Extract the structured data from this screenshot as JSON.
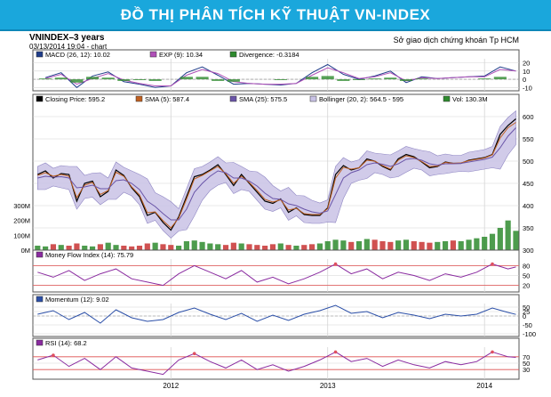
{
  "banner": {
    "title": "ĐỒ THỊ PHÂN TÍCH KỸ THUẬT VN-INDEX"
  },
  "header": {
    "symbol": "VNINDEX",
    "period": "3 years",
    "date_time": "03/13/2014 19:04",
    "chart_word": "chart",
    "source": "Sở giao dịch chứng khoán Tp HCM"
  },
  "colors": {
    "banner": "#1aa7dc",
    "price": "#000000",
    "sma5": "#c06020",
    "sma25": "#6a55a8",
    "bollinger_fill": "#c9c3e6",
    "bollinger_line": "#7a6fb8",
    "volume": "#2e8b2e",
    "volume_up": "#2e8b2e",
    "volume_down": "#c83232",
    "macd": "#1f3d8a",
    "exp": "#b050b8",
    "divergence": "#2e8b2e",
    "mfi": "#8a2ba0",
    "momentum": "#2b4fa8",
    "rsi": "#8a2ba0",
    "overbought_fill": "#e05060",
    "threshold_line": "#e05050",
    "panel_bg": "#ffffff",
    "grid": "#d4d4d4"
  },
  "chart_data": [
    {
      "panel": "macd",
      "type": "line",
      "legend": [
        {
          "label": "MACD (26, 12): 10.02",
          "icon": "square-icon"
        },
        {
          "label": "EXP (9): 10.34",
          "icon": "square-icon"
        },
        {
          "label": "Divergence: -0.3184",
          "icon": "square-icon"
        }
      ],
      "ylim": [
        -14,
        25
      ],
      "y_ticks": [
        "20",
        "10",
        "0",
        "-10"
      ],
      "x_ticks": [
        "2012",
        "2013",
        "2014"
      ],
      "x": [
        2011.2,
        2011.3,
        2011.4,
        2011.5,
        2011.6,
        2011.7,
        2011.8,
        2011.9,
        2012.0,
        2012.1,
        2012.2,
        2012.3,
        2012.4,
        2012.5,
        2012.6,
        2012.7,
        2012.8,
        2012.9,
        2013.0,
        2013.1,
        2013.2,
        2013.3,
        2013.4,
        2013.5,
        2013.6,
        2013.7,
        2013.8,
        2013.9,
        2014.0,
        2014.1,
        2014.2
      ],
      "series": [
        {
          "name": "MACD (26, 12)",
          "values": [
            2,
            8,
            -10,
            4,
            9,
            -3,
            -6,
            -10,
            -8,
            8,
            15,
            5,
            -6,
            -5,
            -6,
            -7,
            -5,
            8,
            18,
            6,
            0,
            4,
            10,
            -4,
            3,
            1,
            2,
            3,
            4,
            15,
            10
          ]
        },
        {
          "name": "EXP (9)",
          "values": [
            1,
            6,
            -6,
            1,
            7,
            -1,
            -5,
            -8,
            -8,
            5,
            12,
            7,
            -3,
            -5,
            -6,
            -6,
            -5,
            5,
            14,
            8,
            1,
            3,
            8,
            -2,
            2,
            1,
            2,
            3,
            3,
            12,
            10
          ]
        },
        {
          "name": "Divergence",
          "values": [
            1,
            2,
            -4,
            3,
            2,
            -2,
            -1,
            -2,
            0,
            3,
            3,
            -2,
            -3,
            0,
            0,
            -1,
            0,
            3,
            4,
            -2,
            -1,
            1,
            2,
            -2,
            1,
            0,
            0,
            0,
            1,
            3,
            0
          ]
        }
      ]
    },
    {
      "panel": "price",
      "type": "line",
      "legend": [
        {
          "label": "Closing Price: 595.2",
          "icon": "square-icon"
        },
        {
          "label": "SMA (5): 587.4",
          "icon": "square-icon"
        },
        {
          "label": "SMA (25): 575.5",
          "icon": "square-icon"
        },
        {
          "label": "Bollinger (20, 2): 564.5 - 595",
          "icon": "square-icon"
        },
        {
          "label": "Vol: 130.3M",
          "icon": "square-icon"
        }
      ],
      "ylim": [
        300,
        630
      ],
      "y_ticks": [
        "600",
        "550",
        "500",
        "450",
        "400",
        "350",
        "300"
      ],
      "volume_ylim": [
        0,
        360
      ],
      "volume_ticks": [
        "300M",
        "200M",
        "100M",
        "0M"
      ],
      "x_ticks": [
        "2012",
        "2013",
        "2014"
      ],
      "x": [
        2011.15,
        2011.2,
        2011.25,
        2011.3,
        2011.35,
        2011.4,
        2011.45,
        2011.5,
        2011.55,
        2011.6,
        2011.65,
        2011.7,
        2011.75,
        2011.8,
        2011.85,
        2011.9,
        2011.95,
        2012.0,
        2012.05,
        2012.1,
        2012.15,
        2012.2,
        2012.25,
        2012.3,
        2012.35,
        2012.4,
        2012.45,
        2012.5,
        2012.55,
        2012.6,
        2012.65,
        2012.7,
        2012.75,
        2012.8,
        2012.85,
        2012.9,
        2012.95,
        2013.0,
        2013.05,
        2013.1,
        2013.15,
        2013.2,
        2013.25,
        2013.3,
        2013.35,
        2013.4,
        2013.45,
        2013.5,
        2013.55,
        2013.6,
        2013.65,
        2013.7,
        2013.75,
        2013.8,
        2013.85,
        2013.9,
        2013.95,
        2014.0,
        2014.05,
        2014.1,
        2014.15,
        2014.2
      ],
      "series": [
        {
          "name": "Closing Price",
          "values": [
            470,
            478,
            462,
            472,
            470,
            410,
            450,
            455,
            420,
            432,
            480,
            468,
            440,
            420,
            378,
            385,
            362,
            345,
            375,
            420,
            465,
            470,
            480,
            492,
            470,
            445,
            470,
            450,
            430,
            410,
            405,
            415,
            385,
            395,
            380,
            378,
            378,
            395,
            470,
            490,
            480,
            485,
            505,
            500,
            488,
            480,
            505,
            515,
            510,
            498,
            485,
            488,
            498,
            495,
            495,
            502,
            505,
            508,
            515,
            560,
            580,
            595
          ]
        },
        {
          "name": "SMA (5)",
          "values": [
            468,
            474,
            466,
            470,
            466,
            418,
            446,
            452,
            425,
            434,
            475,
            466,
            442,
            424,
            384,
            386,
            366,
            350,
            372,
            415,
            460,
            468,
            478,
            488,
            472,
            450,
            466,
            452,
            434,
            414,
            408,
            413,
            390,
            394,
            382,
            380,
            380,
            393,
            462,
            486,
            482,
            485,
            502,
            500,
            490,
            482,
            502,
            512,
            508,
            499,
            488,
            489,
            497,
            495,
            496,
            501,
            504,
            507,
            514,
            552,
            575,
            587
          ]
        },
        {
          "name": "SMA (25)",
          "values": [
            462,
            466,
            464,
            465,
            462,
            440,
            442,
            446,
            438,
            438,
            456,
            458,
            450,
            436,
            410,
            398,
            382,
            368,
            368,
            392,
            430,
            450,
            466,
            478,
            474,
            462,
            462,
            455,
            444,
            428,
            416,
            414,
            404,
            400,
            392,
            386,
            383,
            388,
            425,
            462,
            474,
            480,
            492,
            496,
            493,
            488,
            494,
            504,
            506,
            502,
            494,
            491,
            494,
            494,
            495,
            498,
            501,
            504,
            509,
            530,
            556,
            575
          ]
        }
      ],
      "volume": {
        "values": [
          30,
          25,
          40,
          35,
          30,
          45,
          30,
          25,
          40,
          50,
          35,
          30,
          25,
          30,
          45,
          50,
          40,
          35,
          30,
          60,
          65,
          55,
          45,
          40,
          35,
          50,
          45,
          40,
          35,
          30,
          40,
          45,
          35,
          30,
          35,
          40,
          45,
          60,
          70,
          65,
          55,
          60,
          75,
          70,
          60,
          55,
          65,
          70,
          60,
          55,
          50,
          55,
          60,
          65,
          60,
          70,
          80,
          90,
          110,
          150,
          200,
          130
        ]
      }
    },
    {
      "panel": "mfi",
      "type": "line",
      "legend": [
        {
          "label": "Money Flow Index (14): 75.79",
          "icon": "square-icon"
        }
      ],
      "ylim": [
        0,
        100
      ],
      "y_ticks": [
        "80",
        "50",
        "20"
      ],
      "x_ticks": [
        "2012",
        "2013",
        "2014"
      ],
      "x": [
        2011.15,
        2011.25,
        2011.35,
        2011.45,
        2011.55,
        2011.65,
        2011.75,
        2011.85,
        2011.95,
        2012.05,
        2012.15,
        2012.25,
        2012.35,
        2012.45,
        2012.55,
        2012.65,
        2012.75,
        2012.85,
        2012.95,
        2013.05,
        2013.15,
        2013.25,
        2013.35,
        2013.45,
        2013.55,
        2013.65,
        2013.75,
        2013.85,
        2013.95,
        2014.05,
        2014.15,
        2014.2
      ],
      "series": [
        {
          "name": "Money Flow Index (14)",
          "values": [
            60,
            45,
            65,
            35,
            55,
            70,
            40,
            30,
            20,
            55,
            80,
            60,
            40,
            65,
            30,
            45,
            25,
            40,
            60,
            85,
            55,
            70,
            40,
            60,
            50,
            35,
            55,
            45,
            60,
            85,
            70,
            76
          ]
        }
      ]
    },
    {
      "panel": "momentum",
      "type": "line",
      "legend": [
        {
          "label": "Momentum (12): 9.02",
          "icon": "square-icon"
        }
      ],
      "ylim": [
        -115,
        70
      ],
      "y_ticks": [
        "50",
        "25",
        "0",
        "-50",
        "-100"
      ],
      "x_ticks": [
        "2012",
        "2013",
        "2014"
      ],
      "x": [
        2011.15,
        2011.25,
        2011.35,
        2011.45,
        2011.55,
        2011.65,
        2011.75,
        2011.85,
        2011.95,
        2012.05,
        2012.15,
        2012.25,
        2012.35,
        2012.45,
        2012.55,
        2012.65,
        2012.75,
        2012.85,
        2012.95,
        2013.05,
        2013.15,
        2013.25,
        2013.35,
        2013.45,
        2013.55,
        2013.65,
        2013.75,
        2013.85,
        2013.95,
        2014.05,
        2014.15,
        2014.2
      ],
      "series": [
        {
          "name": "Momentum (12)",
          "values": [
            10,
            30,
            -20,
            20,
            -40,
            35,
            -10,
            -30,
            -20,
            20,
            45,
            10,
            -20,
            15,
            -30,
            5,
            -25,
            10,
            30,
            60,
            15,
            25,
            -10,
            20,
            5,
            -15,
            10,
            0,
            10,
            45,
            20,
            9
          ]
        }
      ]
    },
    {
      "panel": "rsi",
      "type": "line",
      "legend": [
        {
          "label": "RSI (14): 68.2",
          "icon": "square-icon"
        }
      ],
      "ylim": [
        0,
        100
      ],
      "y_ticks": [
        "70",
        "50",
        "30"
      ],
      "x_ticks": [
        "2012",
        "2013",
        "2014"
      ],
      "x": [
        2011.15,
        2011.25,
        2011.35,
        2011.45,
        2011.55,
        2011.65,
        2011.75,
        2011.85,
        2011.95,
        2012.05,
        2012.15,
        2012.25,
        2012.35,
        2012.45,
        2012.55,
        2012.65,
        2012.75,
        2012.85,
        2012.95,
        2013.05,
        2013.15,
        2013.25,
        2013.35,
        2013.45,
        2013.55,
        2013.65,
        2013.75,
        2013.85,
        2013.95,
        2014.05,
        2014.15,
        2014.2
      ],
      "series": [
        {
          "name": "RSI (14)",
          "values": [
            60,
            75,
            40,
            65,
            30,
            70,
            35,
            25,
            15,
            60,
            80,
            55,
            35,
            60,
            30,
            45,
            25,
            40,
            60,
            85,
            55,
            65,
            40,
            60,
            45,
            35,
            55,
            45,
            55,
            85,
            70,
            68
          ]
        }
      ]
    }
  ]
}
